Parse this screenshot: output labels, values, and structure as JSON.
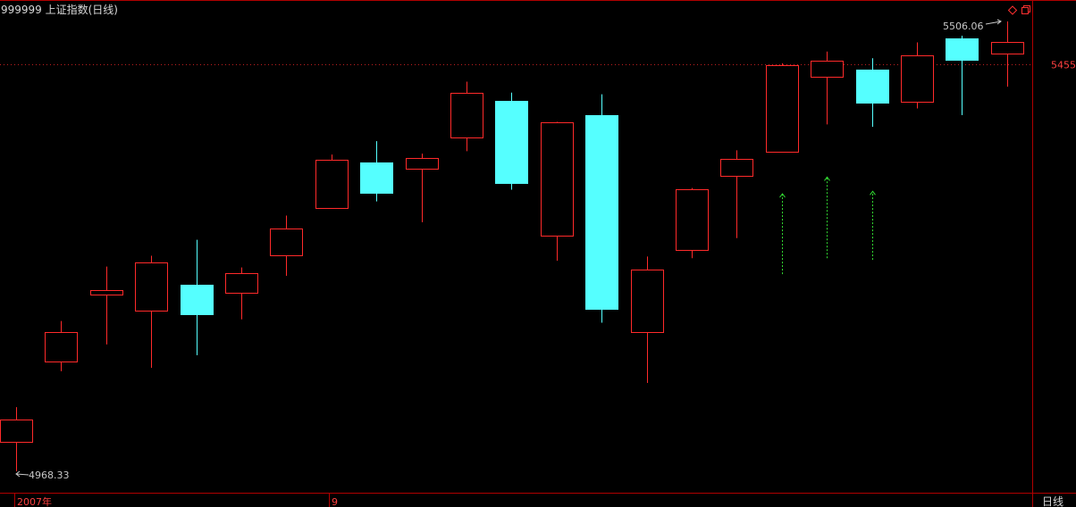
{
  "window": {
    "title": "999999 上证指数(日线)",
    "period_label": "日线"
  },
  "colors": {
    "background": "#000000",
    "up": "#ff2a2a",
    "down": "#55ffff",
    "frame": "#b00000",
    "ref_line": "#c02020",
    "label_white": "#c0c0c0",
    "signal_green": "#33dd33",
    "price_label": "#ff4040"
  },
  "icons": {
    "close_icon": "diamond",
    "restore_icon": "square-restore"
  },
  "chart_data": {
    "type": "candlestick",
    "title": "999999 上证指数(日线)",
    "x_labels": [
      "2007年",
      "9"
    ],
    "y_ticks": [
      5455
    ],
    "ylim": [
      4955,
      5515
    ],
    "grid": false,
    "high_annotation": "5506.06",
    "low_annotation": "4968.33",
    "high_value": 5506.06,
    "low_value": 4968.33,
    "reference_line": 5455,
    "candles": [
      {
        "open": 5003,
        "close": 5030,
        "high": 5045,
        "low": 4968.33
      },
      {
        "open": 5100,
        "close": 5135,
        "high": 5148,
        "low": 5088
      },
      {
        "open": 5180,
        "close": 5185,
        "high": 5213,
        "low": 5120
      },
      {
        "open": 5160,
        "close": 5218,
        "high": 5226,
        "low": 5092
      },
      {
        "open": 5191,
        "close": 5156,
        "high": 5245,
        "low": 5107
      },
      {
        "open": 5181,
        "close": 5205,
        "high": 5212,
        "low": 5150
      },
      {
        "open": 5227,
        "close": 5259,
        "high": 5274,
        "low": 5202
      },
      {
        "open": 5283,
        "close": 5341,
        "high": 5347,
        "low": 5283
      },
      {
        "open": 5338,
        "close": 5302,
        "high": 5363,
        "low": 5291
      },
      {
        "open": 5330,
        "close": 5343,
        "high": 5348,
        "low": 5266
      },
      {
        "open": 5368,
        "close": 5421,
        "high": 5434,
        "low": 5351
      },
      {
        "open": 5411,
        "close": 5313,
        "high": 5421,
        "low": 5305
      },
      {
        "open": 5250,
        "close": 5386,
        "high": 5386,
        "low": 5220
      },
      {
        "open": 5394,
        "close": 5163,
        "high": 5419,
        "low": 5146
      },
      {
        "open": 5134,
        "close": 5209,
        "high": 5225,
        "low": 5074
      },
      {
        "open": 5232,
        "close": 5305,
        "high": 5307,
        "low": 5223
      },
      {
        "open": 5322,
        "close": 5342,
        "high": 5352,
        "low": 5247
      },
      {
        "open": 5351,
        "close": 5454,
        "high": 5456,
        "low": 5351
      },
      {
        "open": 5440,
        "close": 5459,
        "high": 5470,
        "low": 5383
      },
      {
        "open": 5448,
        "close": 5408,
        "high": 5462,
        "low": 5380
      },
      {
        "open": 5409,
        "close": 5465,
        "high": 5481,
        "low": 5402
      },
      {
        "open": 5486,
        "close": 5460,
        "high": 5489,
        "low": 5394
      },
      {
        "open": 5467,
        "close": 5481,
        "high": 5506.06,
        "low": 5428
      }
    ],
    "buy_signals": [
      {
        "index": 17,
        "from": 5204,
        "to": 5300
      },
      {
        "index": 18,
        "from": 5223,
        "to": 5320
      },
      {
        "index": 19,
        "from": 5221,
        "to": 5303
      }
    ]
  }
}
